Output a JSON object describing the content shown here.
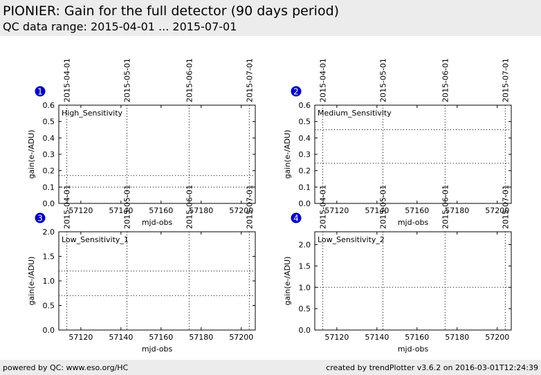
{
  "header": {
    "title": "PIONIER: Gain for the full detector (90 days period)",
    "subtitle": "QC data range: 2015-04-01 ... 2015-07-01"
  },
  "footer": {
    "left": "powered by QC: www.eso.org/HC",
    "right": "created by trendPlotter v3.6.2 on 2016-03-01T12:24:39"
  },
  "colors": {
    "badge": "#0000cc",
    "header_bg": "#ececec"
  },
  "chart_data": [
    {
      "type": "line",
      "badge": "1",
      "name": "High_Sensitivity",
      "xlabel": "mjd-obs",
      "ylabel": "gain(e-/ADU)",
      "xlim": [
        57109,
        57207
      ],
      "ylim": [
        0,
        0.6
      ],
      "xticks": [
        57120,
        57140,
        57160,
        57180,
        57200
      ],
      "yticks": [
        0.0,
        0.1,
        0.2,
        0.3,
        0.4,
        0.5,
        0.6
      ],
      "date_markers": [
        {
          "label": "2015-04-01",
          "x": 57113
        },
        {
          "label": "2015-05-01",
          "x": 57143
        },
        {
          "label": "2015-06-01",
          "x": 57174
        },
        {
          "label": "2015-07-01",
          "x": 57204
        }
      ],
      "hlines": [
        0.17,
        0.1
      ]
    },
    {
      "type": "line",
      "badge": "2",
      "name": "Medium_Sensitivity",
      "xlabel": "mjd-obs",
      "ylabel": "gain(e-/ADU)",
      "xlim": [
        57109,
        57207
      ],
      "ylim": [
        0,
        0.6
      ],
      "xticks": [
        57120,
        57140,
        57160,
        57180,
        57200
      ],
      "yticks": [
        0.0,
        0.1,
        0.2,
        0.3,
        0.4,
        0.5,
        0.6
      ],
      "date_markers": [
        {
          "label": "2015-04-01",
          "x": 57113
        },
        {
          "label": "2015-05-01",
          "x": 57143
        },
        {
          "label": "2015-06-01",
          "x": 57174
        },
        {
          "label": "2015-07-01",
          "x": 57204
        }
      ],
      "hlines": [
        0.45,
        0.245
      ]
    },
    {
      "type": "line",
      "badge": "3",
      "name": "Low_Sensitivity_1",
      "xlabel": "mjd-obs",
      "ylabel": "gain(e-/ADU)",
      "xlim": [
        57109,
        57207
      ],
      "ylim": [
        0,
        2.0
      ],
      "xticks": [
        57120,
        57140,
        57160,
        57180,
        57200
      ],
      "yticks": [
        0.0,
        0.5,
        1.0,
        1.5,
        2.0
      ],
      "date_markers": [
        {
          "label": "2015-04-01",
          "x": 57113
        },
        {
          "label": "2015-05-01",
          "x": 57143
        },
        {
          "label": "2015-06-01",
          "x": 57174
        },
        {
          "label": "2015-07-01",
          "x": 57204
        }
      ],
      "hlines": [
        1.2,
        0.7
      ]
    },
    {
      "type": "line",
      "badge": "4",
      "name": "Low_Sensitivity_2",
      "xlabel": "mjd-obs",
      "ylabel": "gain(e-/ADU)",
      "xlim": [
        57109,
        57207
      ],
      "ylim": [
        0,
        2.3
      ],
      "xticks": [
        57120,
        57140,
        57160,
        57180,
        57200
      ],
      "yticks": [
        0.0,
        0.5,
        1.0,
        1.5,
        2.0
      ],
      "date_markers": [
        {
          "label": "2015-04-01",
          "x": 57113
        },
        {
          "label": "2015-05-01",
          "x": 57143
        },
        {
          "label": "2015-06-01",
          "x": 57174
        },
        {
          "label": "2015-07-01",
          "x": 57204
        }
      ],
      "hlines": [
        1.0
      ]
    }
  ]
}
